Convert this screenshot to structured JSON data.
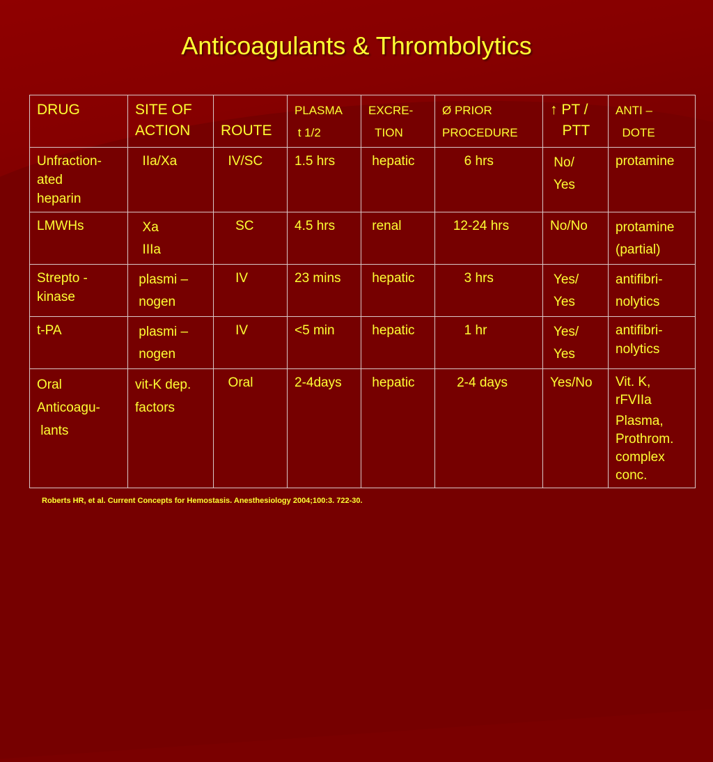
{
  "slide": {
    "title": "Anticoagulants & Thrombolytics",
    "reference": "Roberts HR, et al. Current Concepts for Hemostasis. Anesthesiology 2004;100:3. 722-30."
  },
  "table": {
    "headers": [
      [
        "DRUG"
      ],
      [
        "SITE OF",
        "ACTION"
      ],
      [
        "",
        "ROUTE"
      ],
      [
        "PLASMA",
        " t 1/2"
      ],
      [
        "EXCRE-",
        "  TION"
      ],
      [
        "Ø PRIOR",
        "PROCEDURE"
      ],
      [
        "↑ PT /",
        "   PTT"
      ],
      [
        "ANTI –",
        "  DOTE"
      ]
    ],
    "rows": [
      {
        "drug": [
          "Unfraction-",
          "ated",
          "heparin"
        ],
        "site": [
          "  IIa/Xa"
        ],
        "route": [
          "  IV/SC"
        ],
        "half_life": [
          "1.5 hrs"
        ],
        "excretion": [
          " hepatic"
        ],
        "prior": [
          "      6 hrs"
        ],
        "pt_ptt": [
          " No/",
          " Yes"
        ],
        "antidote": [
          "protamine"
        ]
      },
      {
        "drug": [
          "LMWHs"
        ],
        "site": [
          "  Xa",
          "  IIIa"
        ],
        "route": [
          "    SC"
        ],
        "half_life": [
          "4.5 hrs"
        ],
        "excretion": [
          " renal"
        ],
        "prior": [
          "   12-24 hrs"
        ],
        "pt_ptt": [
          "No/No"
        ],
        "antidote": [
          "protamine",
          "(partial)"
        ]
      },
      {
        "drug": [
          "Strepto -",
          "kinase"
        ],
        "site": [
          " plasmi –",
          " nogen"
        ],
        "route": [
          "    IV"
        ],
        "half_life": [
          "23 mins"
        ],
        "excretion": [
          " hepatic"
        ],
        "prior": [
          "      3 hrs"
        ],
        "pt_ptt": [
          " Yes/",
          " Yes"
        ],
        "antidote": [
          "antifibri-",
          "nolytics"
        ]
      },
      {
        "drug": [
          "t-PA"
        ],
        "site": [
          " plasmi –",
          " nogen"
        ],
        "route": [
          "    IV"
        ],
        "half_life": [
          "<5 min"
        ],
        "excretion": [
          " hepatic"
        ],
        "prior": [
          "      1 hr"
        ],
        "pt_ptt": [
          " Yes/",
          " Yes"
        ],
        "antidote": [
          "antifibri-",
          "nolytics"
        ]
      },
      {
        "drug": [
          "Oral",
          "Anticoagu-",
          " lants"
        ],
        "site": [
          "vit-K dep.",
          "factors"
        ],
        "route": [
          "  Oral"
        ],
        "half_life": [
          "2-4days"
        ],
        "excretion": [
          " hepatic"
        ],
        "prior": [
          "    2-4 days"
        ],
        "pt_ptt": [
          "Yes/No"
        ],
        "antidote": [
          "Vit. K,",
          "rFVIIa",
          "Plasma,",
          "Prothrom.",
          "complex",
          "conc."
        ]
      }
    ]
  },
  "colors": {
    "background": "#7a0000",
    "text": "#ffff33",
    "grid": "#d9c8c8"
  }
}
